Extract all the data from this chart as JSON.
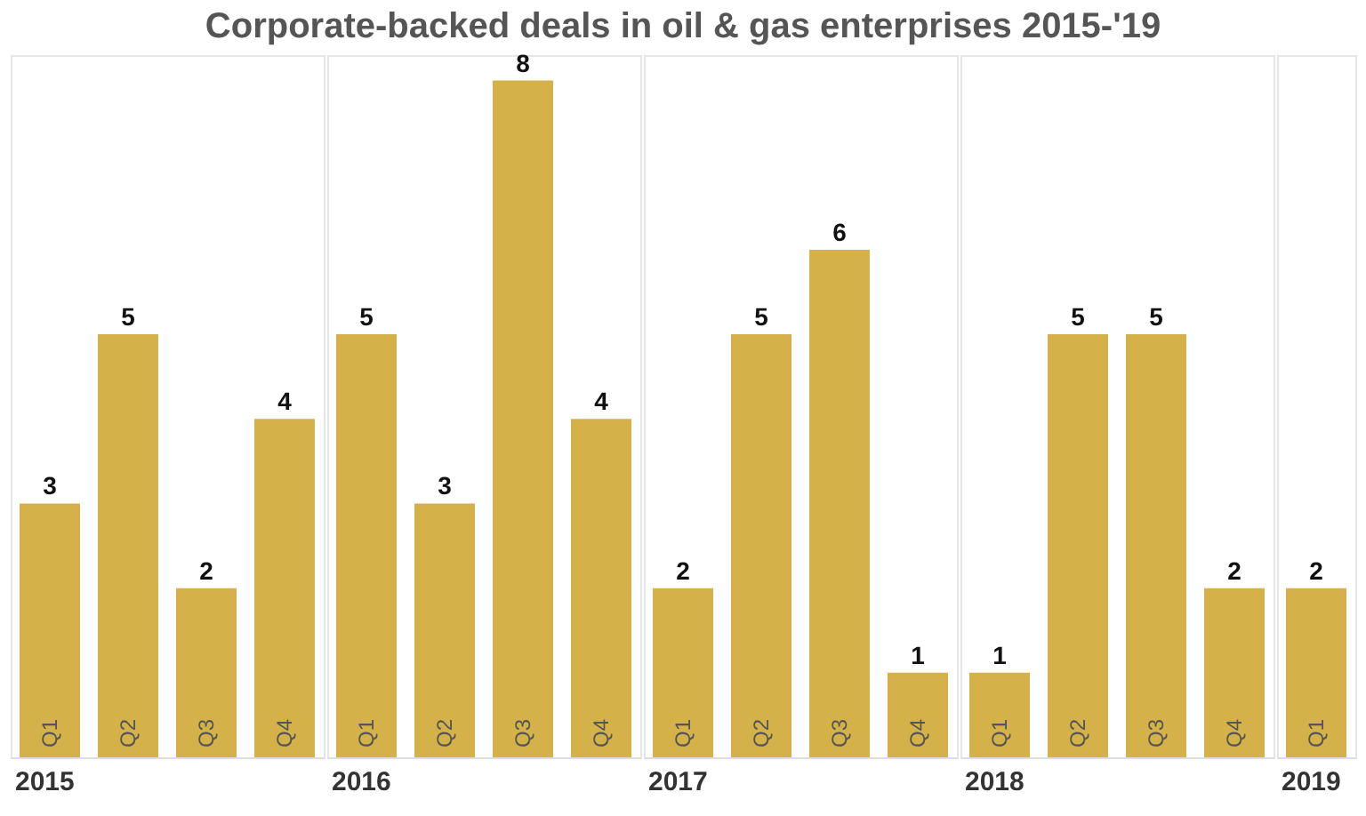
{
  "chart_data": [
    {
      "type": "bar",
      "title": "Corporate-backed deals in oil & gas enterprises 2015-'19",
      "xlabel": "2015",
      "categories": [
        "Q1",
        "Q2",
        "Q3",
        "Q4"
      ],
      "values": [
        3,
        5,
        2,
        4
      ],
      "color": "#d4b249",
      "data_labels": true
    },
    {
      "type": "bar",
      "xlabel": "2016",
      "categories": [
        "Q1",
        "Q2",
        "Q3",
        "Q4"
      ],
      "values": [
        5,
        3,
        8,
        4
      ],
      "color": "#d4b249",
      "data_labels": true
    },
    {
      "type": "bar",
      "xlabel": "2017",
      "categories": [
        "Q1",
        "Q2",
        "Q3",
        "Q4"
      ],
      "values": [
        2,
        5,
        6,
        1
      ],
      "color": "#d4b249",
      "data_labels": true
    },
    {
      "type": "bar",
      "xlabel": "2018",
      "categories": [
        "Q1",
        "Q2",
        "Q3",
        "Q4"
      ],
      "values": [
        1,
        5,
        5,
        2
      ],
      "color": "#d4b249",
      "data_labels": true
    },
    {
      "type": "bar",
      "xlabel": "2019",
      "categories": [
        "Q1"
      ],
      "values": [
        2
      ],
      "color": "#d4b249",
      "data_labels": true
    }
  ]
}
